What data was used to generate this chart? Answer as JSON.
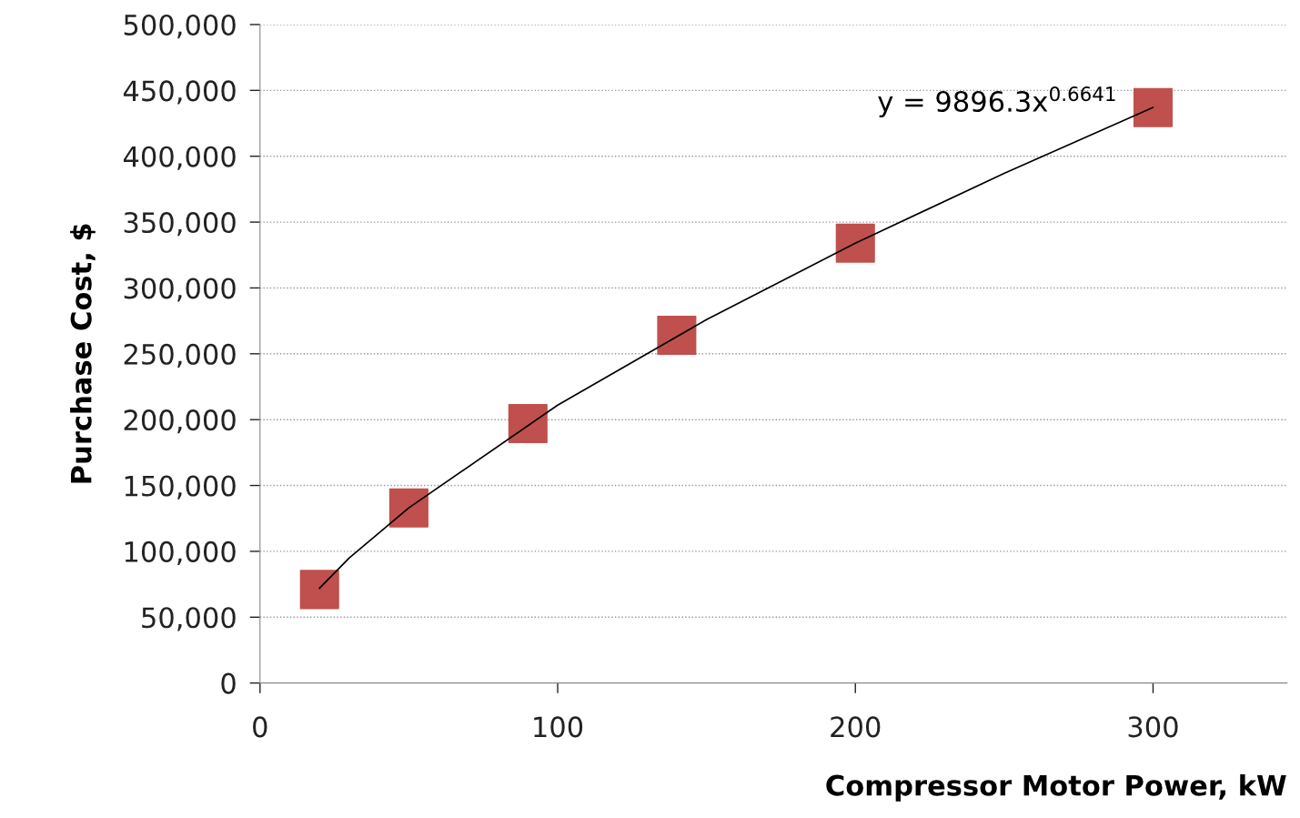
{
  "chart_data": {
    "type": "scatter",
    "xlabel": "Compressor Motor Power, kW",
    "ylabel": "Purchase Cost, $",
    "xlim": [
      0,
      345
    ],
    "xticks": [
      0,
      100,
      200,
      300
    ],
    "ylim": [
      0,
      500000
    ],
    "yticks": [
      {
        "value": 0,
        "label": "0"
      },
      {
        "value": 50000,
        "label": "50,000"
      },
      {
        "value": 100000,
        "label": "100,000"
      },
      {
        "value": 150000,
        "label": "150,000"
      },
      {
        "value": 200000,
        "label": "200,000"
      },
      {
        "value": 250000,
        "label": "250,000"
      },
      {
        "value": 300000,
        "label": "300,000"
      },
      {
        "value": 350000,
        "label": "350,000"
      },
      {
        "value": 400000,
        "label": "400,000"
      },
      {
        "value": 450000,
        "label": "450,000"
      },
      {
        "value": 500000,
        "label": "500,000"
      }
    ],
    "grid": "y",
    "marker": "square",
    "series": [
      {
        "color": "#c0504d",
        "x": [
          20,
          50,
          90,
          140,
          200,
          300
        ],
        "values": [
          71000,
          133000,
          197000,
          264000,
          334000,
          437000
        ]
      },
      {
        "type": "line",
        "color": "#000000",
        "marker": "none",
        "line_style": "solid",
        "x": [
          20,
          30,
          50,
          100,
          150,
          200,
          250,
          300
        ],
        "values": [
          72000,
          95000,
          133000,
          211000,
          276000,
          334000,
          387000,
          437000
        ]
      }
    ],
    "annotations": [
      {
        "text": "y = 9896.3x$^{0.6641}$",
        "x": 300,
        "y": 437000
      }
    ]
  }
}
